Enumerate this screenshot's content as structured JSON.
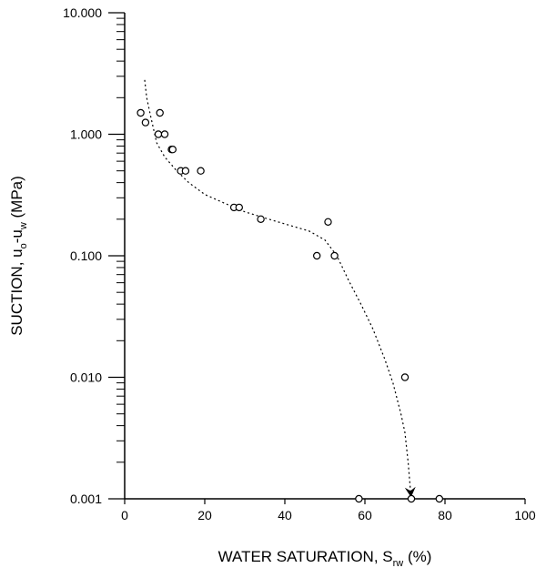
{
  "chart_data": {
    "type": "scatter",
    "xlabel": {
      "main": "WATER SATURATION, S",
      "sub": "rw",
      "tail": " (%)"
    },
    "ylabel": {
      "pre": "SUCTION, u",
      "sub1": "o",
      "mid": "-u",
      "sub2": "w",
      "tail": " (MPa)"
    },
    "xlim": [
      0,
      100
    ],
    "ylim": [
      0.001,
      10
    ],
    "y_scale": "log",
    "x_ticks": [
      {
        "value": 0,
        "label": "0"
      },
      {
        "value": 20,
        "label": "20"
      },
      {
        "value": 40,
        "label": "40"
      },
      {
        "value": 60,
        "label": "60"
      },
      {
        "value": 80,
        "label": "80"
      },
      {
        "value": 100,
        "label": "100"
      }
    ],
    "y_ticks": [
      {
        "value": 10,
        "label": "10.000"
      },
      {
        "value": 1,
        "label": "1.000"
      },
      {
        "value": 0.1,
        "label": "0.100"
      },
      {
        "value": 0.01,
        "label": "0.010"
      },
      {
        "value": 0.001,
        "label": "0.001"
      }
    ],
    "grid": false,
    "series": [
      {
        "marker": "open-circle",
        "x": [
          4,
          5.2,
          8.4,
          8.8,
          10,
          11.7,
          12,
          14,
          15.2,
          19,
          27.3,
          28.6,
          34,
          48,
          50.8,
          52.4,
          70,
          58.5,
          71.6,
          78.6
        ],
        "y": [
          1.5,
          1.25,
          1.0,
          1.5,
          1.0,
          0.75,
          0.75,
          0.5,
          0.5,
          0.5,
          0.25,
          0.25,
          0.2,
          0.1,
          0.19,
          0.1,
          0.01,
          0.001,
          0.001,
          0.001
        ]
      },
      {
        "line_style": "dotted",
        "x": [
          5,
          5.5,
          6.5,
          8,
          10,
          13,
          16,
          20,
          25,
          30,
          36,
          42,
          46,
          50,
          53,
          56,
          59,
          62,
          65,
          67,
          69,
          70,
          70.8,
          71.5
        ],
        "y": [
          2.8,
          2.0,
          1.4,
          0.85,
          0.65,
          0.5,
          0.4,
          0.32,
          0.27,
          0.23,
          0.2,
          0.175,
          0.16,
          0.135,
          0.1,
          0.062,
          0.04,
          0.025,
          0.014,
          0.009,
          0.005,
          0.0035,
          0.002,
          0.00105
        ]
      }
    ]
  }
}
